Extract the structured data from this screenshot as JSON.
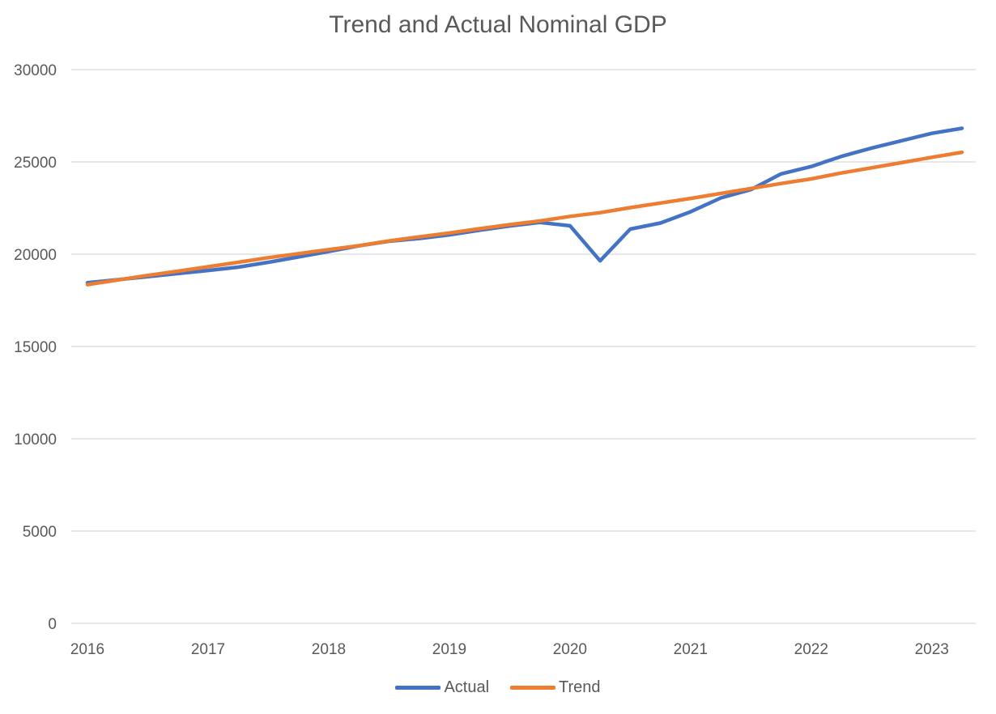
{
  "chart_data": {
    "type": "line",
    "title": "Trend and Actual Nominal GDP",
    "xlabel": "",
    "ylabel": "",
    "ylim": [
      0,
      30000
    ],
    "yticks": [
      "0",
      "5000",
      "10000",
      "15000",
      "20000",
      "25000",
      "30000"
    ],
    "xtick_labels": [
      "2016",
      "2017",
      "2018",
      "2019",
      "2020",
      "2021",
      "2022",
      "2023"
    ],
    "x": [
      2016.0,
      2016.25,
      2016.5,
      2016.75,
      2017.0,
      2017.25,
      2017.5,
      2017.75,
      2018.0,
      2018.25,
      2018.5,
      2018.75,
      2019.0,
      2019.25,
      2019.5,
      2019.75,
      2020.0,
      2020.25,
      2020.5,
      2020.75,
      2021.0,
      2021.25,
      2021.5,
      2021.75,
      2022.0,
      2022.25,
      2022.5,
      2022.75,
      2023.0,
      2023.25
    ],
    "grid": true,
    "legend_position": "bottom",
    "series": [
      {
        "name": "Actual",
        "color": "#4472C4",
        "values": [
          18450,
          18620,
          18780,
          18950,
          19120,
          19300,
          19560,
          19850,
          20150,
          20450,
          20700,
          20850,
          21050,
          21300,
          21530,
          21720,
          21540,
          19640,
          21360,
          21690,
          22300,
          23050,
          23500,
          24350,
          24750,
          25300,
          25750,
          26150,
          26550,
          26820
        ]
      },
      {
        "name": "Trend",
        "color": "#ED7D31",
        "values": [
          18350,
          18600,
          18850,
          19080,
          19320,
          19560,
          19810,
          20030,
          20250,
          20460,
          20720,
          20940,
          21150,
          21380,
          21600,
          21800,
          22050,
          22250,
          22520,
          22770,
          23020,
          23290,
          23560,
          23830,
          24080,
          24400,
          24680,
          24960,
          25250,
          25520
        ]
      }
    ]
  }
}
